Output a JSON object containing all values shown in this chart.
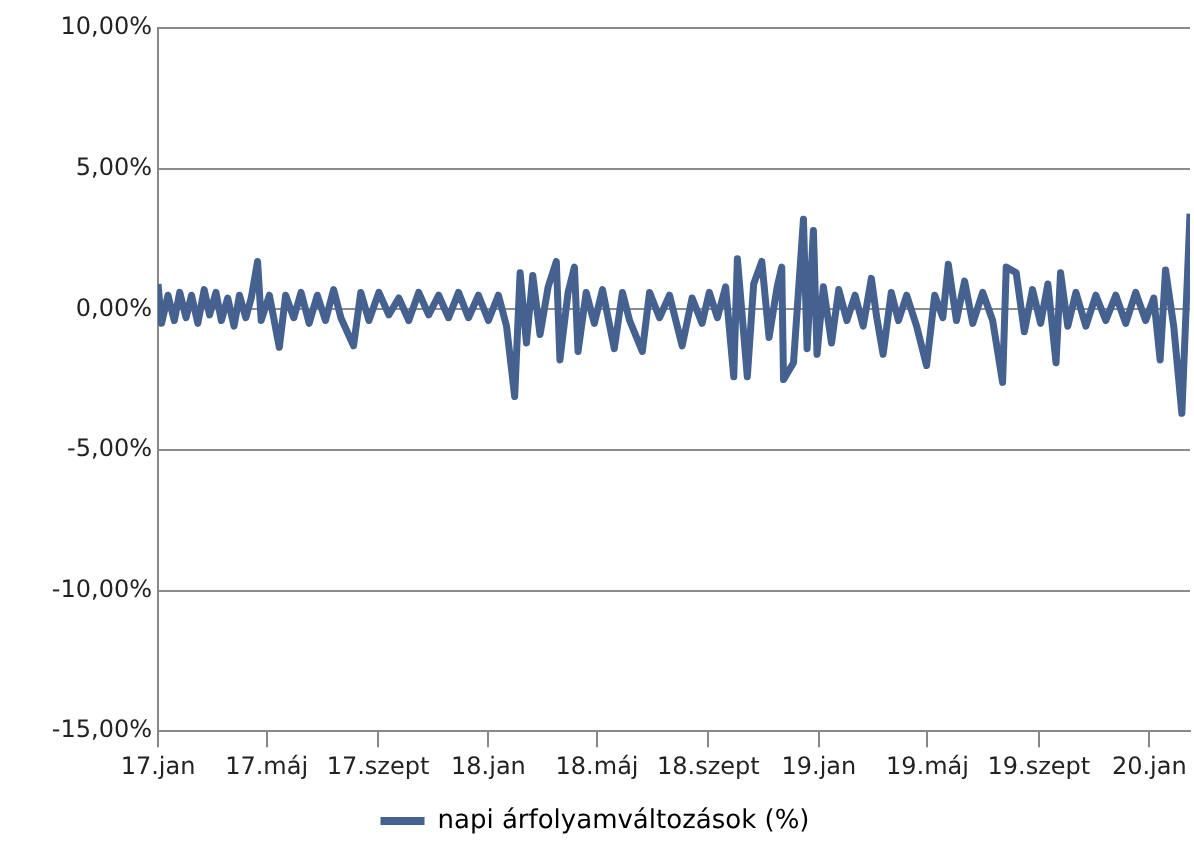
{
  "chart_data": {
    "type": "line",
    "xlim": [
      "2017-01-01",
      "2020-02-15"
    ],
    "ylim": [
      -15,
      10
    ],
    "xticks": [
      {
        "value": "2017-01-01",
        "label": "17.jan"
      },
      {
        "value": "2017-05-01",
        "label": "17.máj"
      },
      {
        "value": "2017-09-01",
        "label": "17.szept"
      },
      {
        "value": "2018-01-01",
        "label": "18.jan"
      },
      {
        "value": "2018-05-01",
        "label": "18.máj"
      },
      {
        "value": "2018-09-01",
        "label": "18.szept"
      },
      {
        "value": "2019-01-01",
        "label": "19.jan"
      },
      {
        "value": "2019-05-01",
        "label": "19.máj"
      },
      {
        "value": "2019-09-01",
        "label": "19.szept"
      },
      {
        "value": "2020-01-01",
        "label": "20.jan"
      }
    ],
    "yticks": [
      {
        "value": 10,
        "label": "10,00%"
      },
      {
        "value": 5,
        "label": "5,00%"
      },
      {
        "value": 0,
        "label": "0,00%"
      },
      {
        "value": -5,
        "label": "-5,00%"
      },
      {
        "value": -10,
        "label": "-10,00%"
      },
      {
        "value": -15,
        "label": "-15,00%"
      }
    ],
    "grid": "y",
    "legend": "bottom",
    "marker": "none",
    "line_style": "solid",
    "x": [
      "2017-01-01",
      "2017-01-05",
      "2017-01-12",
      "2017-01-19",
      "2017-01-25",
      "2017-02-01",
      "2017-02-07",
      "2017-02-14",
      "2017-02-21",
      "2017-02-27",
      "2017-03-06",
      "2017-03-12",
      "2017-03-19",
      "2017-03-26",
      "2017-04-01",
      "2017-04-08",
      "2017-04-14",
      "2017-04-21",
      "2017-04-25",
      "2017-05-04",
      "2017-05-15",
      "2017-05-22",
      "2017-05-31",
      "2017-06-08",
      "2017-06-17",
      "2017-06-26",
      "2017-07-05",
      "2017-07-14",
      "2017-07-22",
      "2017-08-05",
      "2017-08-13",
      "2017-08-22",
      "2017-09-02",
      "2017-09-13",
      "2017-09-24",
      "2017-10-05",
      "2017-10-16",
      "2017-10-27",
      "2017-11-07",
      "2017-11-18",
      "2017-11-29",
      "2017-12-10",
      "2017-12-21",
      "2018-01-01",
      "2018-01-12",
      "2018-01-21",
      "2018-01-30",
      "2018-02-05",
      "2018-02-12",
      "2018-02-19",
      "2018-02-27",
      "2018-03-08",
      "2018-03-17",
      "2018-03-21",
      "2018-03-30",
      "2018-04-06",
      "2018-04-10",
      "2018-04-19",
      "2018-04-28",
      "2018-05-07",
      "2018-05-20",
      "2018-05-29",
      "2018-06-06",
      "2018-06-20",
      "2018-06-28",
      "2018-07-09",
      "2018-07-20",
      "2018-08-03",
      "2018-08-14",
      "2018-08-25",
      "2018-09-02",
      "2018-09-11",
      "2018-09-20",
      "2018-09-29",
      "2018-10-03",
      "2018-10-14",
      "2018-10-21",
      "2018-10-30",
      "2018-11-07",
      "2018-11-16",
      "2018-11-21",
      "2018-11-23",
      "2018-12-04",
      "2018-12-15",
      "2018-12-19",
      "2018-12-26",
      "2018-12-30",
      "2019-01-06",
      "2019-01-15",
      "2019-01-23",
      "2019-02-01",
      "2019-02-10",
      "2019-02-19",
      "2019-02-28",
      "2019-03-06",
      "2019-03-13",
      "2019-03-22",
      "2019-03-30",
      "2019-04-08",
      "2019-04-19",
      "2019-04-30",
      "2019-05-09",
      "2019-05-18",
      "2019-05-24",
      "2019-06-02",
      "2019-06-11",
      "2019-06-20",
      "2019-07-01",
      "2019-07-12",
      "2019-07-23",
      "2019-07-27",
      "2019-08-07",
      "2019-08-16",
      "2019-08-25",
      "2019-09-03",
      "2019-09-11",
      "2019-09-20",
      "2019-09-25",
      "2019-10-03",
      "2019-10-12",
      "2019-10-23",
      "2019-11-03",
      "2019-11-14",
      "2019-11-25",
      "2019-12-06",
      "2019-12-17",
      "2019-12-28",
      "2020-01-06",
      "2020-01-13",
      "2020-01-19",
      "2020-01-28",
      "2020-02-06",
      "2020-02-15"
    ],
    "series": [
      {
        "name": "napi árfolyamváltozások (%)",
        "color": "#44618f",
        "values": [
          0.9,
          -0.5,
          0.5,
          -0.4,
          0.6,
          -0.3,
          0.5,
          -0.5,
          0.7,
          -0.2,
          0.6,
          -0.4,
          0.4,
          -0.6,
          0.5,
          -0.3,
          0.4,
          1.7,
          -0.4,
          0.5,
          -1.35,
          0.5,
          -0.3,
          0.6,
          -0.5,
          0.5,
          -0.4,
          0.7,
          -0.3,
          -1.3,
          0.6,
          -0.4,
          0.6,
          -0.2,
          0.4,
          -0.4,
          0.6,
          -0.2,
          0.5,
          -0.3,
          0.6,
          -0.3,
          0.5,
          -0.4,
          0.5,
          -0.6,
          -3.1,
          1.3,
          -1.2,
          1.2,
          -0.9,
          0.8,
          1.7,
          -1.8,
          0.6,
          1.5,
          -1.5,
          0.6,
          -0.5,
          0.7,
          -1.4,
          0.6,
          -0.4,
          -1.5,
          0.6,
          -0.3,
          0.5,
          -1.3,
          0.4,
          -0.5,
          0.6,
          -0.3,
          0.8,
          -2.4,
          1.8,
          -2.4,
          0.9,
          1.7,
          -1.0,
          0.8,
          1.5,
          -2.5,
          -1.9,
          3.2,
          -1.4,
          2.8,
          -1.6,
          0.8,
          -1.2,
          0.7,
          -0.4,
          0.5,
          -0.6,
          1.1,
          -0.3,
          -1.6,
          0.6,
          -0.4,
          0.5,
          -0.6,
          -2.0,
          0.5,
          -0.3,
          1.6,
          -0.4,
          1.0,
          -0.5,
          0.6,
          -0.4,
          -2.6,
          1.5,
          1.3,
          -0.8,
          0.7,
          -0.5,
          0.9,
          -1.9,
          1.3,
          -0.6,
          0.6,
          -0.6,
          0.5,
          -0.4,
          0.5,
          -0.5,
          0.6,
          -0.4,
          0.4,
          -1.8,
          1.4,
          -0.6,
          -3.7,
          3.4
        ]
      }
    ]
  }
}
